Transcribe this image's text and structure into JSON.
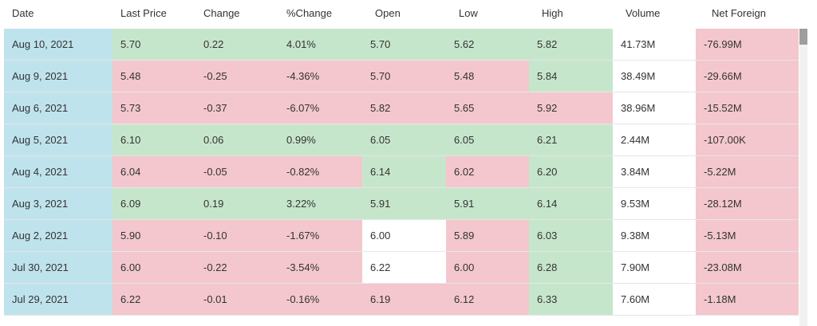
{
  "headers": [
    "Date",
    "Last Price",
    "Change",
    "%Change",
    "Open",
    "Low",
    "High",
    "Volume",
    "Net Foreign"
  ],
  "colors": {
    "date_bg": "#bfe3ec",
    "up_bg": "#c6e6cc",
    "down_bg": "#f3c7cd",
    "neutral_bg": "#ffffff"
  },
  "rows": [
    {
      "date": "Aug 10, 2021",
      "last": "5.70",
      "change": "0.22",
      "pct": "4.01%",
      "open": "5.70",
      "low": "5.62",
      "high": "5.82",
      "volume": "41.73M",
      "netforeign": "-76.99M",
      "tone": {
        "last": "up",
        "change": "up",
        "pct": "up",
        "open": "up",
        "low": "up",
        "high": "up",
        "volume": "neutral",
        "netforeign": "down"
      }
    },
    {
      "date": "Aug 9, 2021",
      "last": "5.48",
      "change": "-0.25",
      "pct": "-4.36%",
      "open": "5.70",
      "low": "5.48",
      "high": "5.84",
      "volume": "38.49M",
      "netforeign": "-29.66M",
      "tone": {
        "last": "down",
        "change": "down",
        "pct": "down",
        "open": "down",
        "low": "down",
        "high": "up",
        "volume": "neutral",
        "netforeign": "down"
      }
    },
    {
      "date": "Aug 6, 2021",
      "last": "5.73",
      "change": "-0.37",
      "pct": "-6.07%",
      "open": "5.82",
      "low": "5.65",
      "high": "5.92",
      "volume": "38.96M",
      "netforeign": "-15.52M",
      "tone": {
        "last": "down",
        "change": "down",
        "pct": "down",
        "open": "down",
        "low": "down",
        "high": "down",
        "volume": "neutral",
        "netforeign": "down"
      }
    },
    {
      "date": "Aug 5, 2021",
      "last": "6.10",
      "change": "0.06",
      "pct": "0.99%",
      "open": "6.05",
      "low": "6.05",
      "high": "6.21",
      "volume": "2.44M",
      "netforeign": "-107.00K",
      "tone": {
        "last": "up",
        "change": "up",
        "pct": "up",
        "open": "up",
        "low": "up",
        "high": "up",
        "volume": "neutral",
        "netforeign": "down"
      }
    },
    {
      "date": "Aug 4, 2021",
      "last": "6.04",
      "change": "-0.05",
      "pct": "-0.82%",
      "open": "6.14",
      "low": "6.02",
      "high": "6.20",
      "volume": "3.84M",
      "netforeign": "-5.22M",
      "tone": {
        "last": "down",
        "change": "down",
        "pct": "down",
        "open": "up",
        "low": "down",
        "high": "up",
        "volume": "neutral",
        "netforeign": "down"
      }
    },
    {
      "date": "Aug 3, 2021",
      "last": "6.09",
      "change": "0.19",
      "pct": "3.22%",
      "open": "5.91",
      "low": "5.91",
      "high": "6.14",
      "volume": "9.53M",
      "netforeign": "-28.12M",
      "tone": {
        "last": "up",
        "change": "up",
        "pct": "up",
        "open": "up",
        "low": "up",
        "high": "up",
        "volume": "neutral",
        "netforeign": "down"
      }
    },
    {
      "date": "Aug 2, 2021",
      "last": "5.90",
      "change": "-0.10",
      "pct": "-1.67%",
      "open": "6.00",
      "low": "5.89",
      "high": "6.03",
      "volume": "9.38M",
      "netforeign": "-5.13M",
      "tone": {
        "last": "down",
        "change": "down",
        "pct": "down",
        "open": "neutral",
        "low": "down",
        "high": "up",
        "volume": "neutral",
        "netforeign": "down"
      }
    },
    {
      "date": "Jul 30, 2021",
      "last": "6.00",
      "change": "-0.22",
      "pct": "-3.54%",
      "open": "6.22",
      "low": "6.00",
      "high": "6.28",
      "volume": "7.90M",
      "netforeign": "-23.08M",
      "tone": {
        "last": "down",
        "change": "down",
        "pct": "down",
        "open": "neutral",
        "low": "down",
        "high": "up",
        "volume": "neutral",
        "netforeign": "down"
      }
    },
    {
      "date": "Jul 29, 2021",
      "last": "6.22",
      "change": "-0.01",
      "pct": "-0.16%",
      "open": "6.19",
      "low": "6.12",
      "high": "6.33",
      "volume": "7.60M",
      "netforeign": "-1.18M",
      "tone": {
        "last": "down",
        "change": "down",
        "pct": "down",
        "open": "down",
        "low": "down",
        "high": "up",
        "volume": "neutral",
        "netforeign": "down"
      }
    }
  ]
}
